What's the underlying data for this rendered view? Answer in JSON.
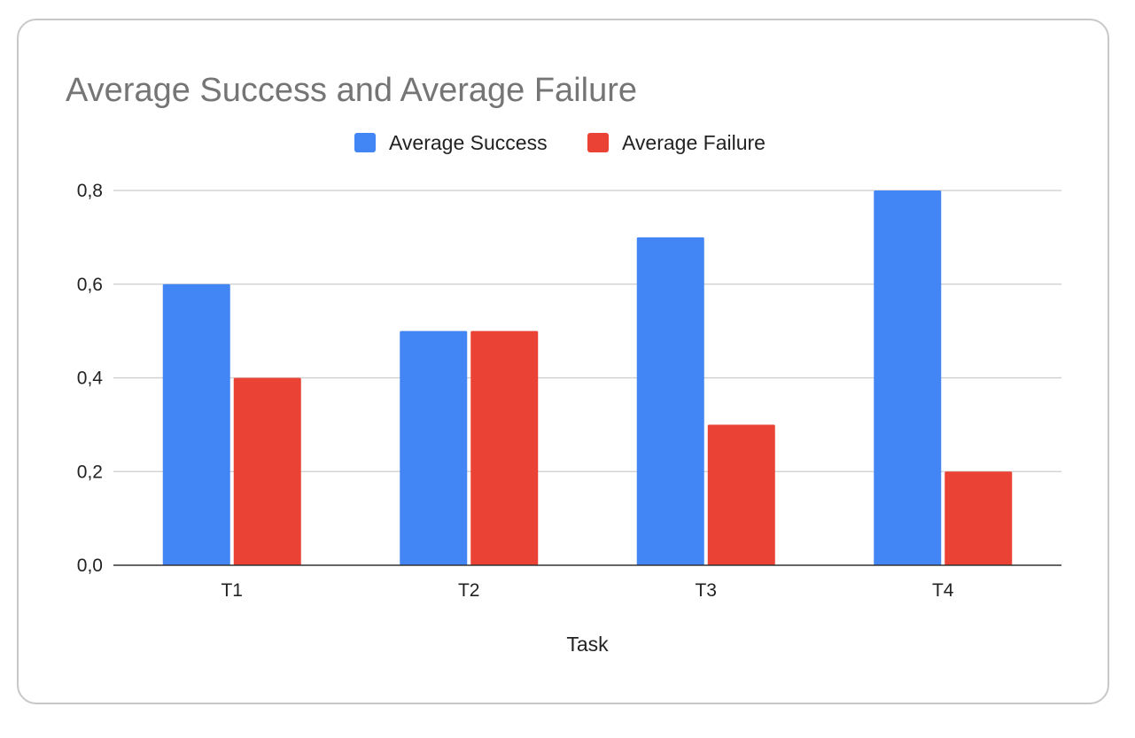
{
  "chart_data": {
    "type": "bar",
    "title": "Average Success and Average Failure",
    "xlabel": "Task",
    "ylabel": "",
    "categories": [
      "T1",
      "T2",
      "T3",
      "T4"
    ],
    "series": [
      {
        "name": "Average Success",
        "values": [
          0.6,
          0.5,
          0.7,
          0.8
        ],
        "color": "#4285f4"
      },
      {
        "name": "Average Failure",
        "values": [
          0.4,
          0.5,
          0.3,
          0.2
        ],
        "color": "#ea4335"
      }
    ],
    "ylim": [
      0,
      0.8
    ],
    "yticks": [
      0,
      0.2,
      0.4,
      0.6,
      0.8
    ],
    "ytick_labels": [
      "0,0",
      "0,2",
      "0,4",
      "0,6",
      "0,8"
    ],
    "grid": true,
    "legend_position": "top-center",
    "colors": {
      "gridline": "#cccccc",
      "baseline": "#333333"
    }
  }
}
